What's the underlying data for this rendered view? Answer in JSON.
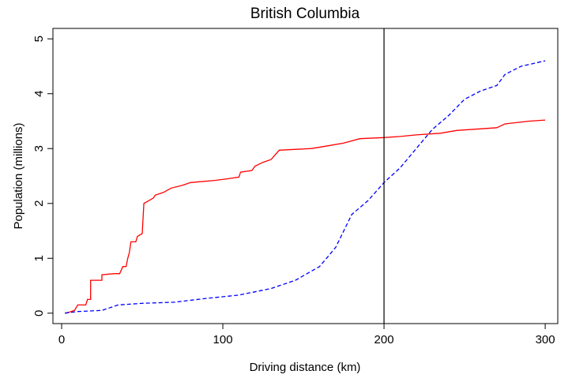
{
  "chart_data": {
    "type": "line",
    "title": "British Columbia",
    "x_label": "Driving distance (km)",
    "y_label": "Population (millions)",
    "xlim": [
      -5.4,
      307.8
    ],
    "ylim": [
      -0.19,
      5.19
    ],
    "xticks": [
      0,
      100,
      200,
      300
    ],
    "yticks": [
      0,
      1,
      2,
      3,
      4,
      5
    ],
    "vline": 200,
    "vline_color": "#000000",
    "series": [
      {
        "color": "#ff0000",
        "linestyle": "solid",
        "x": [
          2,
          5,
          8,
          10,
          15,
          16,
          18,
          18,
          25,
          25,
          33,
          36,
          38,
          40,
          41,
          42,
          43,
          46,
          47,
          50,
          51,
          54,
          57,
          58,
          63,
          68,
          75,
          80,
          95,
          103,
          110,
          111,
          118,
          120,
          125,
          130,
          135,
          155,
          165,
          175,
          185,
          200,
          210,
          220,
          235,
          245,
          270,
          275,
          290,
          300
        ],
        "values": [
          0,
          0.02,
          0.05,
          0.15,
          0.15,
          0.25,
          0.25,
          0.6,
          0.6,
          0.7,
          0.72,
          0.72,
          0.85,
          0.85,
          1.0,
          1.1,
          1.3,
          1.3,
          1.4,
          1.45,
          2.0,
          2.05,
          2.1,
          2.15,
          2.2,
          2.28,
          2.33,
          2.38,
          2.42,
          2.45,
          2.48,
          2.57,
          2.6,
          2.68,
          2.75,
          2.8,
          2.97,
          3.0,
          3.05,
          3.1,
          3.18,
          3.2,
          3.22,
          3.25,
          3.28,
          3.33,
          3.38,
          3.45,
          3.5,
          3.52
        ]
      },
      {
        "color": "#0000ff",
        "linestyle": "dashed",
        "x": [
          2,
          10,
          25,
          35,
          50,
          70,
          90,
          110,
          130,
          145,
          160,
          170,
          180,
          190,
          200,
          210,
          220,
          230,
          240,
          250,
          260,
          270,
          275,
          285,
          300
        ],
        "values": [
          0,
          0.03,
          0.05,
          0.15,
          0.18,
          0.2,
          0.27,
          0.33,
          0.45,
          0.6,
          0.85,
          1.2,
          1.8,
          2.05,
          2.38,
          2.65,
          3.0,
          3.35,
          3.6,
          3.9,
          4.05,
          4.15,
          4.35,
          4.5,
          4.6
        ]
      }
    ]
  }
}
